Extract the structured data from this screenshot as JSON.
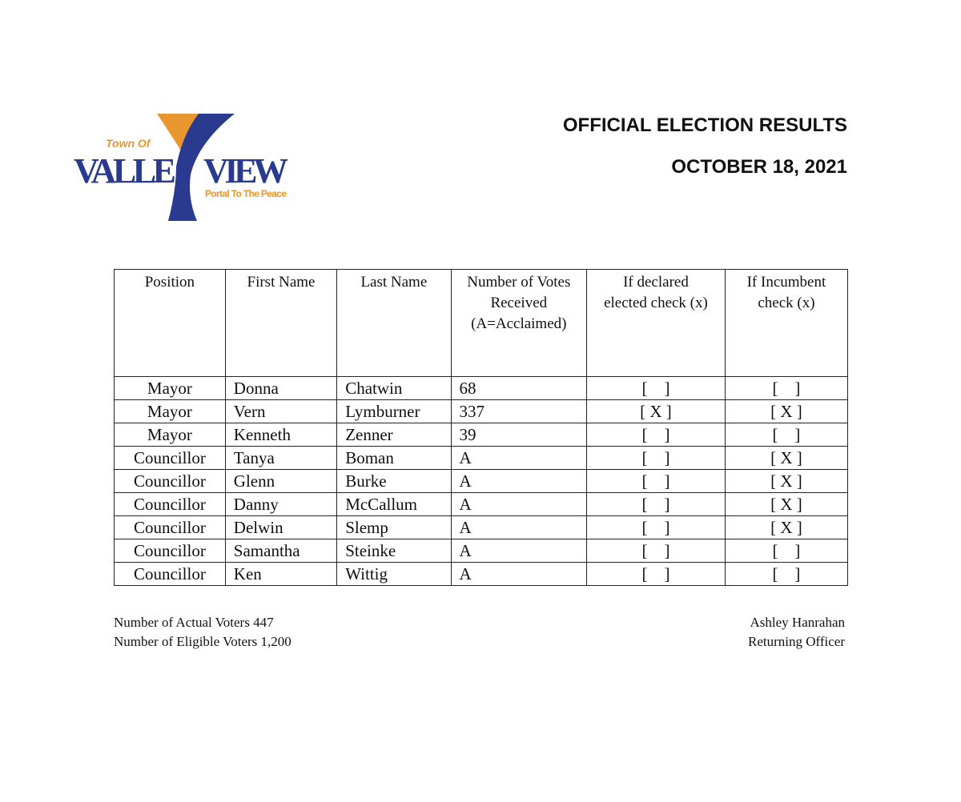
{
  "logo": {
    "top_text": "Town Of",
    "main_left": "VALLE",
    "main_right": "VIEW",
    "tagline": "Portal To The Peace",
    "colors": {
      "blue": "#2a3a8f",
      "orange": "#e8962e"
    }
  },
  "header": {
    "title": "OFFICIAL ELECTION RESULTS",
    "date": "OCTOBER 18, 2021"
  },
  "table": {
    "headers": [
      "Position",
      "First Name",
      "Last Name",
      "Number of Votes Received (A=Acclaimed)",
      "If declared elected check (x)",
      "If Incumbent check (x)"
    ],
    "rows": [
      {
        "position": "Mayor",
        "first": "Donna",
        "last": "Chatwin",
        "votes": "68",
        "elected": "[    ]",
        "incumbent": "[    ]"
      },
      {
        "position": "Mayor",
        "first": "Vern",
        "last": "Lymburner",
        "votes": "337",
        "elected": "[ X ]",
        "incumbent": "[ X ]"
      },
      {
        "position": "Mayor",
        "first": "Kenneth",
        "last": "Zenner",
        "votes": "39",
        "elected": "[    ]",
        "incumbent": "[    ]"
      },
      {
        "position": "Councillor",
        "first": "Tanya",
        "last": "Boman",
        "votes": "A",
        "elected": "[    ]",
        "incumbent": "[ X ]"
      },
      {
        "position": "Councillor",
        "first": "Glenn",
        "last": "Burke",
        "votes": "A",
        "elected": "[    ]",
        "incumbent": "[ X ]"
      },
      {
        "position": "Councillor",
        "first": "Danny",
        "last": "McCallum",
        "votes": "A",
        "elected": "[    ]",
        "incumbent": "[ X ]"
      },
      {
        "position": "Councillor",
        "first": "Delwin",
        "last": "Slemp",
        "votes": "A",
        "elected": "[    ]",
        "incumbent": "[ X ]"
      },
      {
        "position": "Councillor",
        "first": "Samantha",
        "last": "Steinke",
        "votes": "A",
        "elected": "[    ]",
        "incumbent": "[    ]"
      },
      {
        "position": "Councillor",
        "first": "Ken",
        "last": "Wittig",
        "votes": "A",
        "elected": "[    ]",
        "incumbent": "[    ]"
      }
    ]
  },
  "footer": {
    "actual_voters": "Number of Actual Voters  447",
    "eligible_voters": "Number of Eligible Voters  1,200",
    "officer_name": "Ashley Hanrahan",
    "officer_title": "Returning Officer"
  }
}
